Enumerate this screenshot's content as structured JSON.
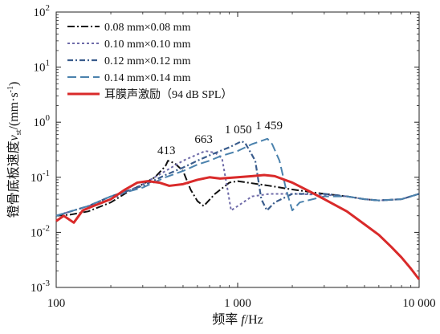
{
  "chart_data": {
    "type": "line",
    "title": "",
    "xlabel": {
      "zh": "频率",
      "italic": "f",
      "unit": "/Hz"
    },
    "ylabel": {
      "zh": "镫骨底板速度",
      "italic": "v",
      "sub": "st",
      "unit": "/(mm·s",
      "unit_sup": "-1",
      "unit_close": ")"
    },
    "x_scale": "log",
    "y_scale": "log",
    "xlim": [
      100,
      10000
    ],
    "ylim": [
      0.001,
      100
    ],
    "x_ticks": [
      {
        "value": 100,
        "label": "100"
      },
      {
        "value": 1000,
        "label": "1 000"
      },
      {
        "value": 10000,
        "label": "10 000"
      }
    ],
    "y_ticks": [
      {
        "value": 0.001,
        "base": "10",
        "exp": "-3"
      },
      {
        "value": 0.01,
        "base": "10",
        "exp": "-2"
      },
      {
        "value": 0.1,
        "base": "10",
        "exp": "-1"
      },
      {
        "value": 1,
        "base": "10",
        "exp": "0"
      },
      {
        "value": 10,
        "base": "10",
        "exp": "1"
      },
      {
        "value": 100,
        "base": "10",
        "exp": "2"
      }
    ],
    "legend_position": "top-left",
    "series": [
      {
        "name": "0.08 mm×0.08 mm",
        "color": "#111111",
        "dash": "9 3 2 3",
        "width": 2,
        "points": [
          [
            100,
            0.02
          ],
          [
            120,
            0.021
          ],
          [
            150,
            0.024
          ],
          [
            200,
            0.035
          ],
          [
            250,
            0.055
          ],
          [
            300,
            0.075
          ],
          [
            350,
            0.1
          ],
          [
            400,
            0.16
          ],
          [
            413,
            0.2
          ],
          [
            450,
            0.18
          ],
          [
            500,
            0.13
          ],
          [
            550,
            0.06
          ],
          [
            600,
            0.037
          ],
          [
            650,
            0.03
          ],
          [
            750,
            0.05
          ],
          [
            900,
            0.08
          ],
          [
            1000,
            0.085
          ],
          [
            1500,
            0.07
          ],
          [
            2000,
            0.06
          ],
          [
            3000,
            0.05
          ],
          [
            4000,
            0.045
          ],
          [
            5000,
            0.04
          ],
          [
            6000,
            0.038
          ],
          [
            8000,
            0.04
          ],
          [
            10000,
            0.05
          ]
        ]
      },
      {
        "name": "0.10 mm×0.10 mm",
        "color": "#6e6aa8",
        "dash": "3 3",
        "width": 2,
        "points": [
          [
            100,
            0.02
          ],
          [
            150,
            0.03
          ],
          [
            200,
            0.04
          ],
          [
            300,
            0.075
          ],
          [
            400,
            0.13
          ],
          [
            500,
            0.2
          ],
          [
            600,
            0.26
          ],
          [
            663,
            0.3
          ],
          [
            750,
            0.28
          ],
          [
            820,
            0.22
          ],
          [
            880,
            0.06
          ],
          [
            920,
            0.025
          ],
          [
            1000,
            0.03
          ],
          [
            1200,
            0.045
          ],
          [
            1500,
            0.05
          ],
          [
            2000,
            0.05
          ],
          [
            3000,
            0.048
          ],
          [
            4000,
            0.045
          ],
          [
            5000,
            0.04
          ],
          [
            6000,
            0.038
          ],
          [
            8000,
            0.04
          ],
          [
            10000,
            0.05
          ]
        ]
      },
      {
        "name": "0.12 mm×0.12 mm",
        "color": "#3a5c8c",
        "dash": "7 3 2 3",
        "width": 2.2,
        "points": [
          [
            100,
            0.02
          ],
          [
            150,
            0.03
          ],
          [
            200,
            0.045
          ],
          [
            300,
            0.07
          ],
          [
            400,
            0.11
          ],
          [
            500,
            0.15
          ],
          [
            600,
            0.2
          ],
          [
            700,
            0.25
          ],
          [
            800,
            0.3
          ],
          [
            900,
            0.35
          ],
          [
            1050,
            0.45
          ],
          [
            1100,
            0.42
          ],
          [
            1250,
            0.2
          ],
          [
            1350,
            0.04
          ],
          [
            1450,
            0.025
          ],
          [
            1600,
            0.035
          ],
          [
            2000,
            0.05
          ],
          [
            3000,
            0.05
          ],
          [
            4000,
            0.045
          ],
          [
            5000,
            0.04
          ],
          [
            6000,
            0.038
          ],
          [
            8000,
            0.04
          ],
          [
            10000,
            0.05
          ]
        ]
      },
      {
        "name": "0.14 mm×0.14 mm",
        "color": "#4b82ad",
        "dash": "11 5",
        "width": 2,
        "points": [
          [
            100,
            0.02
          ],
          [
            150,
            0.03
          ],
          [
            200,
            0.045
          ],
          [
            300,
            0.065
          ],
          [
            400,
            0.1
          ],
          [
            500,
            0.13
          ],
          [
            600,
            0.17
          ],
          [
            700,
            0.2
          ],
          [
            800,
            0.24
          ],
          [
            1000,
            0.3
          ],
          [
            1200,
            0.4
          ],
          [
            1459,
            0.5
          ],
          [
            1550,
            0.4
          ],
          [
            1700,
            0.2
          ],
          [
            1850,
            0.06
          ],
          [
            2000,
            0.025
          ],
          [
            2200,
            0.035
          ],
          [
            3000,
            0.045
          ],
          [
            4000,
            0.045
          ],
          [
            5000,
            0.04
          ],
          [
            6000,
            0.038
          ],
          [
            8000,
            0.04
          ],
          [
            10000,
            0.05
          ]
        ]
      },
      {
        "name": "耳膜声激励（94 dB SPL）",
        "color": "#d92a2a",
        "dash": "",
        "width": 3,
        "points": [
          [
            100,
            0.016
          ],
          [
            110,
            0.02
          ],
          [
            125,
            0.015
          ],
          [
            140,
            0.025
          ],
          [
            160,
            0.03
          ],
          [
            200,
            0.04
          ],
          [
            240,
            0.06
          ],
          [
            280,
            0.08
          ],
          [
            320,
            0.085
          ],
          [
            370,
            0.08
          ],
          [
            420,
            0.07
          ],
          [
            500,
            0.075
          ],
          [
            600,
            0.09
          ],
          [
            700,
            0.1
          ],
          [
            800,
            0.095
          ],
          [
            1000,
            0.1
          ],
          [
            1200,
            0.105
          ],
          [
            1400,
            0.11
          ],
          [
            1600,
            0.105
          ],
          [
            2000,
            0.08
          ],
          [
            2500,
            0.055
          ],
          [
            3000,
            0.04
          ],
          [
            4000,
            0.024
          ],
          [
            5000,
            0.014
          ],
          [
            6000,
            0.009
          ],
          [
            7000,
            0.0055
          ],
          [
            8000,
            0.0035
          ],
          [
            9000,
            0.0022
          ],
          [
            10000,
            0.0014
          ]
        ]
      }
    ],
    "annotations": [
      {
        "text": "413",
        "x": 413,
        "y": 0.2
      },
      {
        "text": "663",
        "x": 663,
        "y": 0.3
      },
      {
        "text": "1 050",
        "x": 1050,
        "y": 0.45
      },
      {
        "text": "1 459",
        "x": 1459,
        "y": 0.5
      }
    ]
  }
}
